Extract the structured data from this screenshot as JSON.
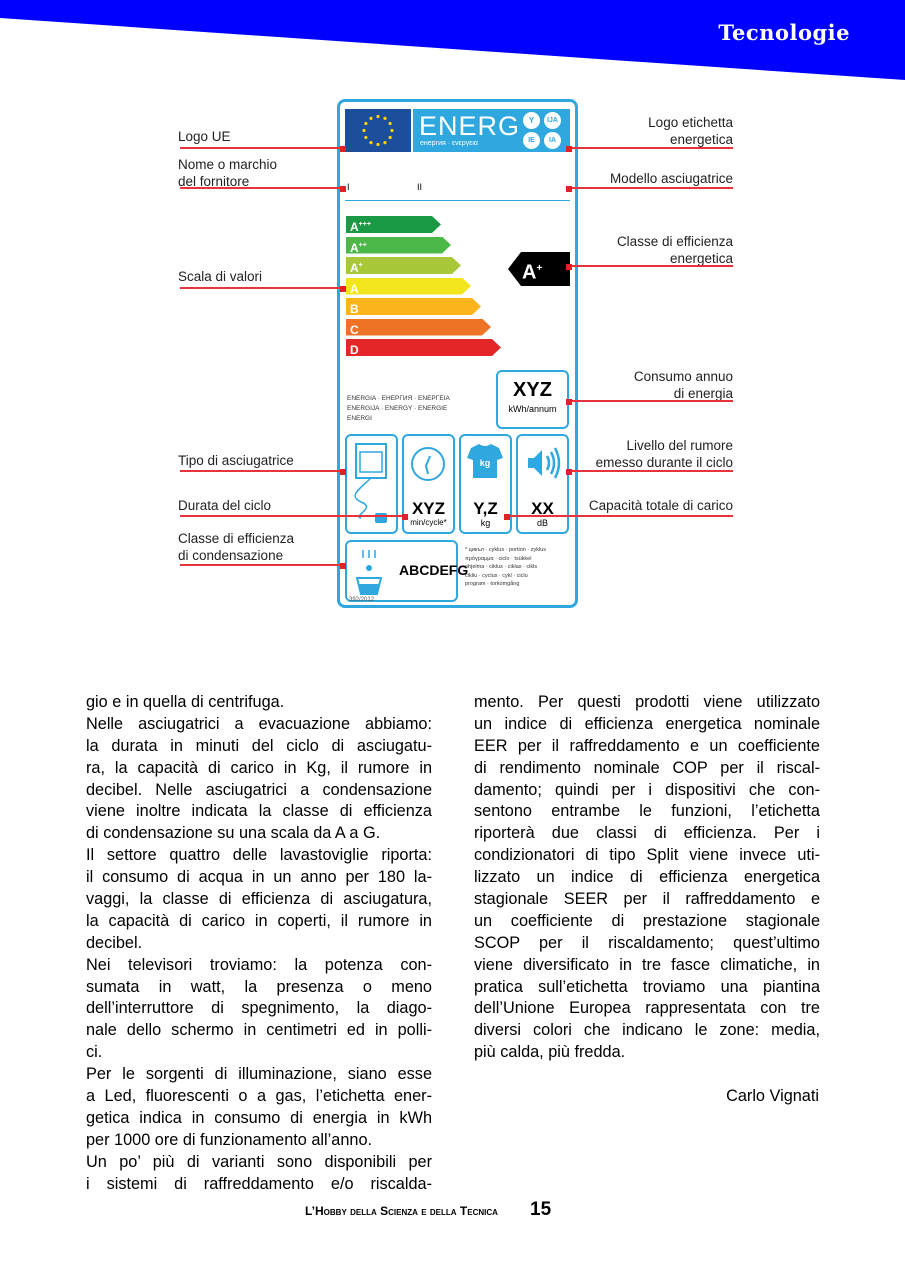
{
  "header": {
    "section": "Tecnologie",
    "color": "#0000ff"
  },
  "figure": {
    "left_labels": [
      "Logo UE",
      "Nome o marchio\ndel fornitore",
      "Scala di valori",
      "Tipo di asciugatrice",
      "Durata del ciclo",
      "Classe di efficienza\ndi condensazione"
    ],
    "right_labels": [
      "Logo etichetta\nenergetica",
      "Modello asciugatrice",
      "Classe di efficienza\nenergetica",
      "Consumo annuo\ndi energia",
      "Livello del rumore\nemesso durante il ciclo",
      "Capacità totale di carico"
    ],
    "energy_label": {
      "title": "ENERG",
      "subtitle": "енергия · ενεργεια",
      "lang_badges": [
        "Y",
        "IJA",
        "IE",
        "IA"
      ],
      "supplier_marks": [
        "I",
        "II"
      ],
      "classes": [
        {
          "label": "A",
          "sup": "+++",
          "color": "#1a9a44"
        },
        {
          "label": "A",
          "sup": "++",
          "color": "#4cb848"
        },
        {
          "label": "A",
          "sup": "+",
          "color": "#a8c83a"
        },
        {
          "label": "A",
          "sup": "",
          "color": "#f3e51d"
        },
        {
          "label": "B",
          "sup": "",
          "color": "#fbb51b"
        },
        {
          "label": "C",
          "sup": "",
          "color": "#ef7324"
        },
        {
          "label": "D",
          "sup": "",
          "color": "#e52629"
        }
      ],
      "rating": {
        "label": "A",
        "sup": "+"
      },
      "energy_words": "ENERGIA · ЕНЕРГИЯ · ΕΝΕΡΓΕΙΑ\nENERGIJA · ENERGY · ENERGIE\nENERGI",
      "consumption": {
        "value": "XYZ",
        "unit": "kWh/annum"
      },
      "cycle": {
        "value": "XYZ",
        "unit": "min/cycle*"
      },
      "capacity": {
        "value": "Y,Z",
        "unit": "kg",
        "icon_text": "kg"
      },
      "noise": {
        "value": "XX",
        "unit": "dB"
      },
      "condensation_scale": "ABCDEFG",
      "footnote": "* цикъл · cyklus · portion · zyklus\nπρόγραμμα · ciclo · tsükkel\nohjelma · ciklus · ciklas · cikls\ncikliu · cyclus · cykl · ciclu\nprogram · torkomgång",
      "regulation": "392/2012",
      "accent": "#2fa8e0"
    }
  },
  "article": {
    "left": [
      [
        "gio e in quella di centrifuga."
      ],
      [
        "Nelle asciugatrici a evacuazione abbiamo:",
        "la durata in minuti del ciclo di asciugatu-",
        "ra, la capacità di carico in Kg, il rumore in",
        "decibel. Nelle asciugatrici a condensazione",
        "viene inoltre indicata la classe di efficienza",
        "di condensazione su una scala da A a G."
      ],
      [
        "Il settore quattro delle lavastoviglie riporta:",
        "il consumo di acqua in un anno per 180 la-",
        "vaggi, la classe di efficienza di asciugatura,",
        "la capacità di carico in coperti, il rumore in",
        "decibel."
      ],
      [
        "Nei televisori troviamo: la potenza con-",
        "sumata in watt, la presenza o meno",
        "dell’interruttore di spegnimento, la diago-",
        "nale dello schermo in centimetri ed in polli-",
        "ci."
      ],
      [
        "Per le sorgenti di illuminazione, siano esse",
        "a Led, fluorescenti o a gas, l’etichetta ener-",
        "getica indica in consumo di energia in kWh",
        "per 1000 ore di funzionamento all’anno."
      ],
      [
        "Un po’ più di varianti sono disponibili per",
        "i sistemi di raffreddamento e/o riscalda-"
      ]
    ],
    "right": [
      [
        "mento. Per questi prodotti viene utilizzato",
        "un indice di efficienza energetica nominale",
        "EER per il raffreddamento e un coefficiente",
        "di rendimento nominale COP per il riscal-",
        "damento; quindi per i dispositivi che con-",
        "sentono entrambe le funzioni, l’etichetta",
        "riporterà due classi di efficienza. Per i",
        "condizionatori di tipo Split viene invece uti-",
        "lizzato un indice di efficienza energetica",
        "stagionale SEER per il raffreddamento e",
        "un coefficiente di prestazione stagionale",
        "SCOP per il riscaldamento; quest’ultimo",
        "viene diversificato in tre fasce climatiche, in",
        "pratica sull’etichetta troviamo una piantina",
        "dell’Unione Europea rappresentata con tre",
        "diversi colori che indicano le zone: media,",
        "più calda, più fredda."
      ]
    ],
    "author": "Carlo Vignati"
  },
  "footer": {
    "magazine": "L’Hobby della Scienza e della Tecnica",
    "page": "15"
  }
}
